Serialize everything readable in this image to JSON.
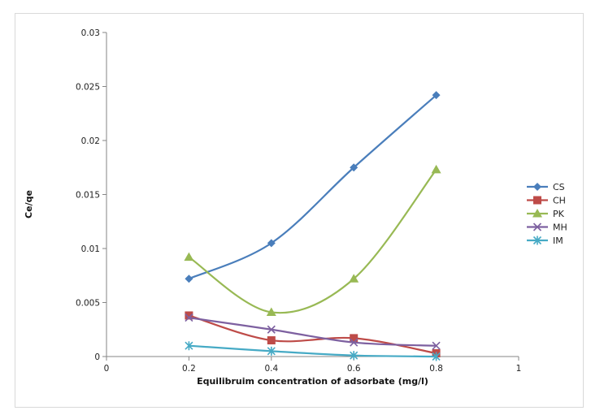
{
  "chart_data": {
    "type": "line",
    "title": "",
    "xlabel": "Equilibruim concentration of adsorbate (mg/l)",
    "ylabel": "Ce/qe",
    "xlim": [
      0,
      1
    ],
    "ylim": [
      0,
      0.03
    ],
    "xticks": [
      0,
      0.2,
      0.4,
      0.6,
      0.8,
      1
    ],
    "yticks": [
      0,
      0.005,
      0.01,
      0.015,
      0.02,
      0.025,
      0.03
    ],
    "xtick_labels": [
      "0",
      "0.2",
      "0.4",
      "0.6",
      "0.8",
      "1"
    ],
    "ytick_labels": [
      "0",
      "0.005",
      "0.01",
      "0.015",
      "0.02",
      "0.025",
      "0.03"
    ],
    "grid": false,
    "legend_position": "right",
    "x": [
      0.2,
      0.4,
      0.6,
      0.8
    ],
    "series": [
      {
        "name": "CS",
        "color": "#4a7ebb",
        "marker": "diamond",
        "values": [
          0.0072,
          0.0105,
          0.0175,
          0.0242
        ]
      },
      {
        "name": "CH",
        "color": "#be4b48",
        "marker": "square",
        "values": [
          0.0038,
          0.0015,
          0.0017,
          0.0003
        ]
      },
      {
        "name": "PK",
        "color": "#98b954",
        "marker": "triangle",
        "values": [
          0.0092,
          0.0041,
          0.0072,
          0.0173
        ]
      },
      {
        "name": "MH",
        "color": "#7d60a0",
        "marker": "x",
        "values": [
          0.0036,
          0.0025,
          0.0013,
          0.001
        ]
      },
      {
        "name": "IM",
        "color": "#46aac5",
        "marker": "star",
        "values": [
          0.001,
          0.0005,
          0.0001,
          0.0
        ]
      }
    ]
  }
}
